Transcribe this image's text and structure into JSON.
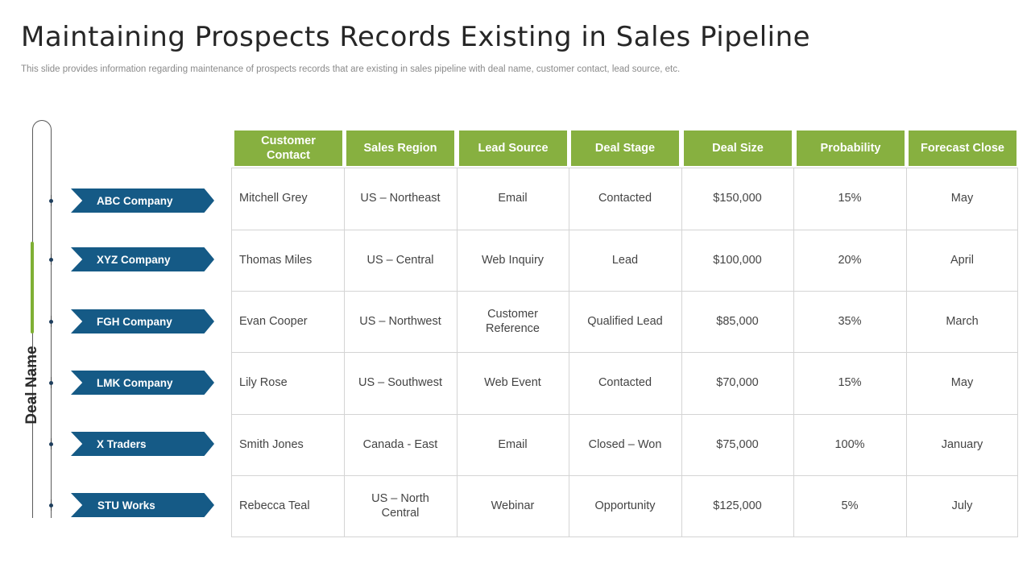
{
  "title": "Maintaining Prospects Records Existing in Sales Pipeline",
  "subtitle": "This slide provides information regarding maintenance of prospects records that are existing in sales pipeline with deal name, customer contact, lead source, etc.",
  "deal_axis_label": "Deal Name",
  "colors": {
    "header_green": "#87b040",
    "tag_blue": "#155a86",
    "accent_green": "#7fb034"
  },
  "deals": [
    "ABC Company",
    "XYZ Company",
    "FGH Company",
    "LMK Company",
    "X Traders",
    "STU Works"
  ],
  "table": {
    "headers": [
      "Customer Contact",
      "Sales Region",
      "Lead Source",
      "Deal Stage",
      "Deal Size",
      "Probability",
      "Forecast Close"
    ],
    "rows": [
      [
        "Mitchell Grey",
        "US – Northeast",
        "Email",
        "Contacted",
        "$150,000",
        "15%",
        "May"
      ],
      [
        "Thomas Miles",
        "US – Central",
        "Web Inquiry",
        "Lead",
        "$100,000",
        "20%",
        "April"
      ],
      [
        "Evan Cooper",
        "US – Northwest",
        "Customer Reference",
        "Qualified Lead",
        "$85,000",
        "35%",
        "March"
      ],
      [
        "Lily Rose",
        "US – Southwest",
        "Web Event",
        "Contacted",
        "$70,000",
        "15%",
        "May"
      ],
      [
        "Smith Jones",
        "Canada - East",
        "Email",
        "Closed – Won",
        "$75,000",
        "100%",
        "January"
      ],
      [
        "Rebecca Teal",
        "US – North Central",
        "Webinar",
        "Opportunity",
        "$125,000",
        "5%",
        "July"
      ]
    ]
  }
}
